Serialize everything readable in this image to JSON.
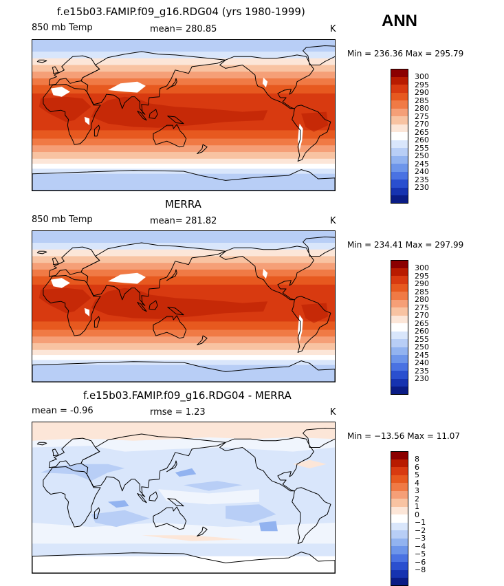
{
  "season": "ANN",
  "panels": [
    {
      "title": "f.e15b03.FAMIP.f09_g16.RDG04 (yrs 1980-1999)",
      "left_label": "850 mb Temp",
      "center_label": "mean= 280.85",
      "units": "K",
      "minmax": "Min = 236.36 Max = 295.79",
      "colorbar_labels": [
        "300",
        "295",
        "290",
        "285",
        "280",
        "275",
        "270",
        "265",
        "260",
        "255",
        "250",
        "245",
        "240",
        "235",
        "230"
      ],
      "palette": [
        "#8b0000",
        "#b81b00",
        "#d83a10",
        "#e7591f",
        "#f07a45",
        "#f59f77",
        "#f8c3a2",
        "#fce6d8",
        "#ffffff",
        "#d9e6fb",
        "#b8cef6",
        "#92b3f0",
        "#6d95ea",
        "#4a72e2",
        "#2a4fcf",
        "#1633b0",
        "#0a1c85"
      ],
      "map_style": "abs"
    },
    {
      "title": "MERRA",
      "left_label": "850 mb Temp",
      "center_label": "mean= 281.82",
      "units": "K",
      "minmax": "Min = 234.41 Max = 297.99",
      "colorbar_labels": [
        "300",
        "295",
        "290",
        "285",
        "280",
        "275",
        "270",
        "265",
        "260",
        "255",
        "250",
        "245",
        "240",
        "235",
        "230"
      ],
      "palette": [
        "#8b0000",
        "#b81b00",
        "#d83a10",
        "#e7591f",
        "#f07a45",
        "#f59f77",
        "#f8c3a2",
        "#fce6d8",
        "#ffffff",
        "#d9e6fb",
        "#b8cef6",
        "#92b3f0",
        "#6d95ea",
        "#4a72e2",
        "#2a4fcf",
        "#1633b0",
        "#0a1c85"
      ],
      "map_style": "abs"
    },
    {
      "title": "f.e15b03.FAMIP.f09_g16.RDG04 - MERRA",
      "left_label": "mean =   -0.96",
      "center_label": "rmse =    1.23",
      "units": "K",
      "minmax": "Min = −13.56 Max =  11.07",
      "colorbar_labels": [
        "8",
        "6",
        "5",
        "4",
        "3",
        "2",
        "1",
        "0",
        "−1",
        "−2",
        "−3",
        "−4",
        "−5",
        "−6",
        "−8"
      ],
      "palette": [
        "#8b0000",
        "#b81b00",
        "#d83a10",
        "#e7591f",
        "#f07a45",
        "#f59f77",
        "#f8c3a2",
        "#fce6d8",
        "#ffffff",
        "#d9e6fb",
        "#b8cef6",
        "#92b3f0",
        "#6d95ea",
        "#4a72e2",
        "#2a4fcf",
        "#1633b0",
        "#0a1c85"
      ],
      "map_style": "diff"
    }
  ]
}
